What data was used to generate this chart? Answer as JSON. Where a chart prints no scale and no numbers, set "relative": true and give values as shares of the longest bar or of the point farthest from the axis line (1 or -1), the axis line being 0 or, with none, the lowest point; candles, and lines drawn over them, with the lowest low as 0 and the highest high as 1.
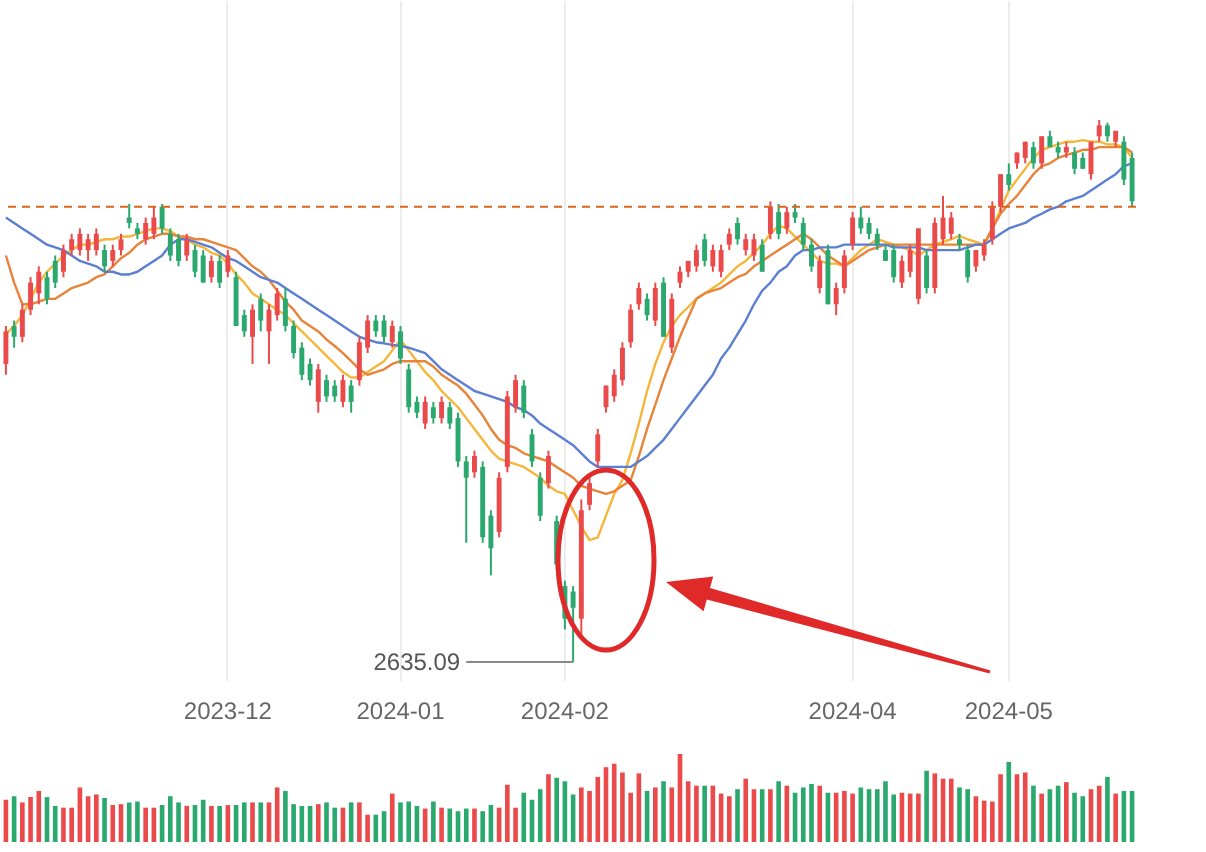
{
  "chart_data": [
    {
      "type": "candlestick",
      "relative": true,
      "grid": "x",
      "categories": [
        null,
        null,
        null,
        null,
        null,
        null,
        null,
        null,
        null,
        null,
        null,
        null,
        null,
        null,
        null,
        null,
        null,
        null,
        null,
        null,
        null,
        null,
        null,
        null,
        null,
        null,
        null,
        "2023-12",
        null,
        null,
        null,
        null,
        null,
        null,
        null,
        null,
        null,
        null,
        null,
        null,
        null,
        null,
        null,
        null,
        null,
        null,
        null,
        null,
        "2024-01",
        null,
        null,
        null,
        null,
        null,
        null,
        null,
        null,
        null,
        null,
        null,
        null,
        null,
        null,
        null,
        null,
        null,
        null,
        null,
        "2024-02",
        null,
        null,
        null,
        null,
        null,
        null,
        null,
        null,
        null,
        null,
        null,
        null,
        null,
        null,
        null,
        null,
        null,
        null,
        null,
        null,
        null,
        null,
        null,
        null,
        null,
        null,
        null,
        null,
        null,
        null,
        null,
        null,
        null,
        null,
        "2024-04",
        null,
        null,
        null,
        null,
        null,
        null,
        null,
        null,
        null,
        null,
        null,
        null,
        null,
        null,
        null,
        null,
        null,
        null,
        "2024-05",
        null,
        null,
        null,
        null,
        null,
        null,
        null,
        null,
        null,
        null,
        null,
        null,
        null,
        null,
        null
      ],
      "ohlc": [
        [
          0.55,
          0.62,
          0.53,
          0.61
        ],
        [
          0.62,
          0.63,
          0.58,
          0.6
        ],
        [
          0.6,
          0.66,
          0.59,
          0.65
        ],
        [
          0.65,
          0.71,
          0.64,
          0.7
        ],
        [
          0.68,
          0.73,
          0.66,
          0.72
        ],
        [
          0.71,
          0.72,
          0.66,
          0.67
        ],
        [
          0.74,
          0.75,
          0.69,
          0.7
        ],
        [
          0.72,
          0.77,
          0.71,
          0.76
        ],
        [
          0.76,
          0.79,
          0.75,
          0.78
        ],
        [
          0.76,
          0.8,
          0.75,
          0.79
        ],
        [
          0.76,
          0.79,
          0.74,
          0.78
        ],
        [
          0.76,
          0.8,
          0.75,
          0.79
        ],
        [
          0.76,
          0.77,
          0.72,
          0.73
        ],
        [
          0.74,
          0.77,
          0.73,
          0.76
        ],
        [
          0.76,
          0.79,
          0.75,
          0.78
        ],
        [
          0.82,
          0.845,
          0.8,
          0.81
        ],
        [
          0.8,
          0.81,
          0.78,
          0.79
        ],
        [
          0.78,
          0.82,
          0.77,
          0.81
        ],
        [
          0.79,
          0.84,
          0.78,
          0.82
        ],
        [
          0.84,
          0.845,
          0.79,
          0.8
        ],
        [
          0.79,
          0.8,
          0.74,
          0.75
        ],
        [
          0.78,
          0.79,
          0.73,
          0.74
        ],
        [
          0.75,
          0.79,
          0.74,
          0.78
        ],
        [
          0.76,
          0.77,
          0.71,
          0.72
        ],
        [
          0.75,
          0.76,
          0.7,
          0.7
        ],
        [
          0.71,
          0.75,
          0.7,
          0.74
        ],
        [
          0.74,
          0.75,
          0.69,
          0.7
        ],
        [
          0.72,
          0.76,
          0.71,
          0.75
        ],
        [
          0.71,
          0.72,
          0.62,
          0.62
        ],
        [
          0.64,
          0.65,
          0.6,
          0.61
        ],
        [
          0.6,
          0.66,
          0.55,
          0.65
        ],
        [
          0.67,
          0.68,
          0.61,
          0.63
        ],
        [
          0.61,
          0.66,
          0.55,
          0.65
        ],
        [
          0.64,
          0.69,
          0.63,
          0.68
        ],
        [
          0.67,
          0.69,
          0.61,
          0.62
        ],
        [
          0.62,
          0.63,
          0.56,
          0.57
        ],
        [
          0.58,
          0.59,
          0.52,
          0.53
        ],
        [
          0.55,
          0.56,
          0.51,
          0.52
        ],
        [
          0.48,
          0.55,
          0.46,
          0.54
        ],
        [
          0.52,
          0.53,
          0.48,
          0.49
        ],
        [
          0.51,
          0.52,
          0.48,
          0.49
        ],
        [
          0.48,
          0.53,
          0.47,
          0.52
        ],
        [
          0.51,
          0.52,
          0.46,
          0.48
        ],
        [
          0.52,
          0.6,
          0.51,
          0.59
        ],
        [
          0.58,
          0.64,
          0.57,
          0.63
        ],
        [
          0.63,
          0.64,
          0.6,
          0.61
        ],
        [
          0.63,
          0.64,
          0.59,
          0.6
        ],
        [
          0.59,
          0.63,
          0.58,
          0.62
        ],
        [
          0.61,
          0.62,
          0.55,
          0.56
        ],
        [
          0.54,
          0.55,
          0.46,
          0.47
        ],
        [
          0.48,
          0.49,
          0.45,
          0.46
        ],
        [
          0.44,
          0.49,
          0.43,
          0.48
        ],
        [
          0.47,
          0.48,
          0.44,
          0.45
        ],
        [
          0.45,
          0.49,
          0.44,
          0.48
        ],
        [
          0.47,
          0.48,
          0.43,
          0.44
        ],
        [
          0.45,
          0.46,
          0.36,
          0.37
        ],
        [
          0.37,
          0.38,
          0.22,
          0.34
        ],
        [
          0.35,
          0.39,
          0.34,
          0.38
        ],
        [
          0.36,
          0.37,
          0.22,
          0.23
        ],
        [
          0.27,
          0.28,
          0.16,
          0.21
        ],
        [
          0.24,
          0.35,
          0.23,
          0.34
        ],
        [
          0.36,
          0.5,
          0.35,
          0.49
        ],
        [
          0.47,
          0.53,
          0.46,
          0.52
        ],
        [
          0.51,
          0.52,
          0.45,
          0.46
        ],
        [
          0.42,
          0.43,
          0.36,
          0.37
        ],
        [
          0.34,
          0.35,
          0.26,
          0.27
        ],
        [
          0.33,
          0.39,
          0.32,
          0.38
        ],
        [
          0.26,
          0.27,
          0.17,
          0.18
        ],
        [
          0.14,
          0.15,
          0.06,
          0.08
        ],
        [
          0.13,
          0.14,
          0,
          0.1
        ],
        [
          0.08,
          0.3,
          0.05,
          0.28
        ],
        [
          0.29,
          0.34,
          0.28,
          0.33
        ],
        [
          0.37,
          0.43,
          0.36,
          0.42
        ],
        [
          0.47,
          0.51,
          0.46,
          0.51
        ],
        [
          0.49,
          0.54,
          0.48,
          0.53
        ],
        [
          0.52,
          0.59,
          0.51,
          0.58
        ],
        [
          0.59,
          0.66,
          0.58,
          0.65
        ],
        [
          0.66,
          0.7,
          0.65,
          0.69
        ],
        [
          0.67,
          0.68,
          0.63,
          0.64
        ],
        [
          0.63,
          0.7,
          0.62,
          0.69
        ],
        [
          0.7,
          0.71,
          0.6,
          0.6
        ],
        [
          0.58,
          0.68,
          0.57,
          0.67
        ],
        [
          0.7,
          0.73,
          0.69,
          0.72
        ],
        [
          0.72,
          0.74,
          0.71,
          0.74
        ],
        [
          0.73,
          0.77,
          0.72,
          0.76
        ],
        [
          0.78,
          0.79,
          0.73,
          0.74
        ],
        [
          0.73,
          0.77,
          0.72,
          0.76
        ],
        [
          0.72,
          0.77,
          0.71,
          0.76
        ],
        [
          0.77,
          0.8,
          0.76,
          0.79
        ],
        [
          0.81,
          0.82,
          0.77,
          0.78
        ],
        [
          0.76,
          0.79,
          0.75,
          0.78
        ],
        [
          0.75,
          0.79,
          0.74,
          0.78
        ],
        [
          0.77,
          0.78,
          0.72,
          0.72
        ],
        [
          0.79,
          0.85,
          0.78,
          0.84
        ],
        [
          0.83,
          0.845,
          0.78,
          0.79
        ],
        [
          0.8,
          0.84,
          0.79,
          0.83
        ],
        [
          0.83,
          0.845,
          0.81,
          0.82
        ],
        [
          0.81,
          0.82,
          0.76,
          0.77
        ],
        [
          0.77,
          0.78,
          0.72,
          0.73
        ],
        [
          0.69,
          0.75,
          0.68,
          0.74
        ],
        [
          0.76,
          0.77,
          0.66,
          0.66
        ],
        [
          0.66,
          0.7,
          0.64,
          0.69
        ],
        [
          0.69,
          0.76,
          0.68,
          0.75
        ],
        [
          0.77,
          0.83,
          0.76,
          0.82
        ],
        [
          0.82,
          0.84,
          0.79,
          0.8
        ],
        [
          0.81,
          0.82,
          0.78,
          0.79
        ],
        [
          0.79,
          0.8,
          0.76,
          0.77
        ],
        [
          0.76,
          0.77,
          0.74,
          0.74
        ],
        [
          0.76,
          0.77,
          0.7,
          0.71
        ],
        [
          0.7,
          0.75,
          0.69,
          0.74
        ],
        [
          0.72,
          0.77,
          0.71,
          0.76
        ],
        [
          0.67,
          0.8,
          0.66,
          0.8
        ],
        [
          0.75,
          0.76,
          0.68,
          0.69
        ],
        [
          0.69,
          0.82,
          0.68,
          0.81
        ],
        [
          0.78,
          0.86,
          0.77,
          0.82
        ],
        [
          0.79,
          0.83,
          0.78,
          0.82
        ],
        [
          0.78,
          0.79,
          0.76,
          0.77
        ],
        [
          0.76,
          0.77,
          0.7,
          0.71
        ],
        [
          0.73,
          0.76,
          0.72,
          0.76
        ],
        [
          0.75,
          0.78,
          0.74,
          0.77
        ],
        [
          0.78,
          0.85,
          0.77,
          0.84
        ],
        [
          0.84,
          0.9,
          0.83,
          0.9
        ],
        [
          0.9,
          0.92,
          0.87,
          0.88
        ],
        [
          0.92,
          0.94,
          0.91,
          0.94
        ],
        [
          0.93,
          0.96,
          0.92,
          0.96
        ],
        [
          0.95,
          0.96,
          0.91,
          0.92
        ],
        [
          0.92,
          0.97,
          0.91,
          0.97
        ],
        [
          0.97,
          0.98,
          0.95,
          0.95
        ],
        [
          0.95,
          0.96,
          0.93,
          0.94
        ],
        [
          0.94,
          0.96,
          0.93,
          0.95
        ],
        [
          0.94,
          0.95,
          0.9,
          0.91
        ],
        [
          0.93,
          0.94,
          0.91,
          0.91
        ],
        [
          0.9,
          0.96,
          0.89,
          0.96
        ],
        [
          0.97,
          1,
          0.96,
          0.99
        ],
        [
          0.99,
          0.995,
          0.96,
          0.97
        ],
        [
          0.96,
          0.98,
          0.95,
          0.98
        ],
        [
          0.96,
          0.97,
          0.88,
          0.89
        ],
        [
          0.93,
          0.94,
          0.84,
          0.85
        ]
      ],
      "colors": [
        "#eb4a4a",
        "#2aa86e",
        "#eb4a4a",
        "#eb4a4a",
        "#eb4a4a",
        "#2aa86e",
        "#2aa86e",
        "#eb4a4a",
        "#eb4a4a",
        "#eb4a4a",
        "#eb4a4a",
        "#eb4a4a",
        "#2aa86e",
        "#eb4a4a",
        "#eb4a4a",
        "#2aa86e",
        "#2aa86e",
        "#eb4a4a",
        "#eb4a4a",
        "#2aa86e",
        "#2aa86e",
        "#2aa86e",
        "#eb4a4a",
        "#2aa86e",
        "#2aa86e",
        "#eb4a4a",
        "#2aa86e",
        "#eb4a4a",
        "#2aa86e",
        "#2aa86e",
        "#eb4a4a",
        "#2aa86e",
        "#eb4a4a",
        "#eb4a4a",
        "#2aa86e",
        "#2aa86e",
        "#2aa86e",
        "#2aa86e",
        "#eb4a4a",
        "#2aa86e",
        "#2aa86e",
        "#eb4a4a",
        "#2aa86e",
        "#eb4a4a",
        "#eb4a4a",
        "#2aa86e",
        "#2aa86e",
        "#eb4a4a",
        "#2aa86e",
        "#2aa86e",
        "#2aa86e",
        "#eb4a4a",
        "#2aa86e",
        "#eb4a4a",
        "#2aa86e",
        "#2aa86e",
        "#2aa86e",
        "#eb4a4a",
        "#2aa86e",
        "#2aa86e",
        "#eb4a4a",
        "#eb4a4a",
        "#eb4a4a",
        "#2aa86e",
        "#2aa86e",
        "#2aa86e",
        "#eb4a4a",
        "#2aa86e",
        "#2aa86e",
        "#2aa86e",
        "#eb4a4a",
        "#eb4a4a",
        "#eb4a4a",
        "#eb4a4a",
        "#eb4a4a",
        "#eb4a4a",
        "#eb4a4a",
        "#eb4a4a",
        "#2aa86e",
        "#eb4a4a",
        "#2aa86e",
        "#eb4a4a",
        "#eb4a4a",
        "#eb4a4a",
        "#eb4a4a",
        "#2aa86e",
        "#eb4a4a",
        "#eb4a4a",
        "#eb4a4a",
        "#2aa86e",
        "#eb4a4a",
        "#eb4a4a",
        "#2aa86e",
        "#eb4a4a",
        "#2aa86e",
        "#eb4a4a",
        "#2aa86e",
        "#2aa86e",
        "#2aa86e",
        "#eb4a4a",
        "#2aa86e",
        "#eb4a4a",
        "#eb4a4a",
        "#eb4a4a",
        "#2aa86e",
        "#2aa86e",
        "#2aa86e",
        "#2aa86e",
        "#2aa86e",
        "#eb4a4a",
        "#eb4a4a",
        "#eb4a4a",
        "#2aa86e",
        "#eb4a4a",
        "#eb4a4a",
        "#eb4a4a",
        "#2aa86e",
        "#2aa86e",
        "#eb4a4a",
        "#eb4a4a",
        "#eb4a4a",
        "#eb4a4a",
        "#2aa86e",
        "#eb4a4a",
        "#eb4a4a",
        "#2aa86e",
        "#eb4a4a",
        "#2aa86e",
        "#2aa86e",
        "#eb4a4a",
        "#2aa86e",
        "#2aa86e",
        "#eb4a4a",
        "#eb4a4a",
        "#2aa86e",
        "#eb4a4a",
        "#2aa86e",
        "#2aa86e"
      ],
      "series": [
        {
          "type": "line",
          "color": "#f5b73b",
          "values": [
            0.605,
            0.62,
            0.64,
            0.67,
            0.7,
            0.72,
            0.735,
            0.75,
            0.76,
            0.77,
            0.77,
            0.775,
            0.78,
            0.78,
            0.785,
            0.785,
            0.79,
            0.795,
            0.8,
            0.8,
            0.795,
            0.785,
            0.78,
            0.77,
            0.765,
            0.755,
            0.75,
            0.735,
            0.715,
            0.7,
            0.68,
            0.67,
            0.66,
            0.65,
            0.64,
            0.625,
            0.61,
            0.595,
            0.58,
            0.565,
            0.55,
            0.535,
            0.525,
            0.525,
            0.535,
            0.545,
            0.555,
            0.575,
            0.594,
            0.575,
            0.555,
            0.535,
            0.52,
            0.5,
            0.485,
            0.47,
            0.45,
            0.43,
            0.41,
            0.39,
            0.375,
            0.37,
            0.365,
            0.36,
            0.35,
            0.34,
            0.325,
            0.315,
            0.31,
            0.28,
            0.25,
            0.225,
            0.23,
            0.27,
            0.31,
            0.336,
            0.385,
            0.44,
            0.5,
            0.55,
            0.59,
            0.62,
            0.64,
            0.655,
            0.67,
            0.68,
            0.69,
            0.7,
            0.715,
            0.73,
            0.74,
            0.755,
            0.77,
            0.79,
            0.805,
            0.8,
            0.785,
            0.77,
            0.755,
            0.74,
            0.735,
            0.735,
            0.73,
            0.745,
            0.76,
            0.77,
            0.78,
            0.775,
            0.77,
            0.765,
            0.76,
            0.75,
            0.76,
            0.77,
            0.775,
            0.78,
            0.786,
            0.78,
            0.775,
            0.77,
            0.8,
            0.835,
            0.87,
            0.89,
            0.91,
            0.93,
            0.945,
            0.95,
            0.955,
            0.96,
            0.96,
            0.963,
            0.96,
            0.96,
            0.955,
            0.955,
            0.95,
            0.93
          ]
        },
        {
          "type": "line",
          "color": "#e8833a",
          "values": [
            0.75,
            0.7,
            0.66,
            0.66,
            0.665,
            0.67,
            0.67,
            0.68,
            0.69,
            0.695,
            0.7,
            0.71,
            0.715,
            0.73,
            0.745,
            0.755,
            0.77,
            0.78,
            0.785,
            0.79,
            0.79,
            0.785,
            0.785,
            0.78,
            0.78,
            0.775,
            0.77,
            0.765,
            0.76,
            0.745,
            0.73,
            0.72,
            0.705,
            0.685,
            0.665,
            0.65,
            0.63,
            0.62,
            0.61,
            0.595,
            0.583,
            0.57,
            0.555,
            0.54,
            0.53,
            0.535,
            0.54,
            0.55,
            0.555,
            0.555,
            0.555,
            0.555,
            0.545,
            0.53,
            0.52,
            0.51,
            0.495,
            0.475,
            0.455,
            0.43,
            0.41,
            0.4,
            0.395,
            0.385,
            0.38,
            0.375,
            0.37,
            0.36,
            0.35,
            0.34,
            0.325,
            0.32,
            0.315,
            0.31,
            0.315,
            0.325,
            0.335,
            0.38,
            0.43,
            0.475,
            0.52,
            0.56,
            0.6,
            0.635,
            0.67,
            0.68,
            0.685,
            0.69,
            0.7,
            0.71,
            0.716,
            0.73,
            0.74,
            0.75,
            0.76,
            0.77,
            0.78,
            0.79,
            0.78,
            0.765,
            0.75,
            0.74,
            0.73,
            0.74,
            0.75,
            0.76,
            0.765,
            0.77,
            0.77,
            0.77,
            0.77,
            0.77,
            0.77,
            0.77,
            0.77,
            0.77,
            0.77,
            0.77,
            0.77,
            0.77,
            0.8,
            0.827,
            0.845,
            0.86,
            0.88,
            0.9,
            0.915,
            0.92,
            0.93,
            0.935,
            0.94,
            0.945,
            0.945,
            0.95,
            0.95,
            0.95,
            0.95,
            0.94
          ]
        },
        {
          "type": "line",
          "color": "#5b7fd1",
          "values": [
            0.82,
            0.81,
            0.8,
            0.79,
            0.78,
            0.77,
            0.765,
            0.76,
            0.75,
            0.74,
            0.735,
            0.73,
            0.72,
            0.72,
            0.715,
            0.715,
            0.72,
            0.73,
            0.74,
            0.75,
            0.77,
            0.78,
            0.78,
            0.775,
            0.77,
            0.765,
            0.755,
            0.745,
            0.74,
            0.73,
            0.72,
            0.71,
            0.705,
            0.7,
            0.69,
            0.68,
            0.67,
            0.66,
            0.65,
            0.64,
            0.63,
            0.62,
            0.61,
            0.6,
            0.595,
            0.59,
            0.588,
            0.585,
            0.583,
            0.58,
            0.575,
            0.57,
            0.555,
            0.54,
            0.53,
            0.52,
            0.51,
            0.5,
            0.495,
            0.49,
            0.485,
            0.48,
            0.47,
            0.465,
            0.455,
            0.44,
            0.43,
            0.42,
            0.41,
            0.4,
            0.385,
            0.37,
            0.36,
            0.36,
            0.36,
            0.36,
            0.36,
            0.37,
            0.38,
            0.395,
            0.41,
            0.43,
            0.45,
            0.47,
            0.49,
            0.51,
            0.53,
            0.56,
            0.58,
            0.605,
            0.63,
            0.66,
            0.685,
            0.7,
            0.72,
            0.73,
            0.75,
            0.76,
            0.76,
            0.765,
            0.765,
            0.765,
            0.77,
            0.77,
            0.77,
            0.77,
            0.77,
            0.77,
            0.765,
            0.765,
            0.765,
            0.765,
            0.76,
            0.76,
            0.76,
            0.76,
            0.76,
            0.765,
            0.77,
            0.77,
            0.78,
            0.79,
            0.8,
            0.805,
            0.81,
            0.82,
            0.827,
            0.835,
            0.84,
            0.85,
            0.855,
            0.86,
            0.87,
            0.88,
            0.89,
            0.9,
            0.915,
            0.92
          ]
        }
      ],
      "ref_lines": [
        {
          "axis": "y",
          "value": 0.84,
          "color": "#d9661c",
          "line_style": "dashed"
        }
      ],
      "annotations": [
        "2635.09"
      ]
    },
    {
      "type": "bar",
      "relative": true,
      "categories": [
        null,
        null,
        null,
        null,
        null,
        null,
        null,
        null,
        null,
        null,
        null,
        null,
        null,
        null,
        null,
        null,
        null,
        null,
        null,
        null,
        null,
        null,
        null,
        null,
        null,
        null,
        null,
        null,
        null,
        null,
        null,
        null,
        null,
        null,
        null,
        null,
        null,
        null,
        null,
        null,
        null,
        null,
        null,
        null,
        null,
        null,
        null,
        null,
        null,
        null,
        null,
        null,
        null,
        null,
        null,
        null,
        null,
        null,
        null,
        null,
        null,
        null,
        null,
        null,
        null,
        null,
        null,
        null,
        null,
        null,
        null,
        null,
        null,
        null,
        null,
        null,
        null,
        null,
        null,
        null,
        null,
        null,
        null,
        null,
        null,
        null,
        null,
        null,
        null,
        null,
        null,
        null,
        null,
        null,
        null,
        null,
        null,
        null,
        null,
        null,
        null,
        null,
        null,
        null,
        null,
        null,
        null,
        null,
        null,
        null,
        null,
        null,
        null,
        null,
        null,
        null,
        null,
        null,
        null,
        null,
        null,
        null,
        null,
        null,
        null,
        null,
        null,
        null,
        null,
        null,
        null,
        null,
        null,
        null,
        null,
        null,
        null,
        null
      ],
      "values": [
        0.48,
        0.52,
        0.45,
        0.51,
        0.58,
        0.51,
        0.41,
        0.39,
        0.39,
        0.62,
        0.52,
        0.54,
        0.5,
        0.42,
        0.43,
        0.45,
        0.46,
        0.39,
        0.39,
        0.42,
        0.52,
        0.45,
        0.41,
        0.42,
        0.48,
        0.41,
        0.41,
        0.42,
        0.42,
        0.45,
        0.45,
        0.45,
        0.45,
        0.62,
        0.58,
        0.43,
        0.41,
        0.41,
        0.43,
        0.45,
        0.39,
        0.39,
        0.45,
        0.45,
        0.31,
        0.31,
        0.35,
        0.55,
        0.45,
        0.46,
        0.41,
        0.38,
        0.46,
        0.39,
        0.38,
        0.35,
        0.38,
        0.38,
        0.35,
        0.42,
        0.39,
        0.65,
        0.39,
        0.56,
        0.48,
        0.6,
        0.77,
        0.73,
        0.69,
        0.54,
        0.62,
        0.58,
        0.74,
        0.85,
        0.89,
        0.79,
        0.56,
        0.78,
        0.58,
        0.62,
        0.69,
        0.62,
        1,
        0.69,
        0.64,
        0.64,
        0.64,
        0.55,
        0.52,
        0.6,
        0.72,
        0.6,
        0.6,
        0.6,
        0.69,
        0.64,
        0.56,
        0.62,
        0.66,
        0.64,
        0.56,
        0.56,
        0.58,
        0.55,
        0.62,
        0.6,
        0.6,
        0.69,
        0.54,
        0.56,
        0.55,
        0.55,
        0.81,
        0.78,
        0.72,
        0.72,
        0.62,
        0.6,
        0.52,
        0.47,
        0.46,
        0.77,
        0.91,
        0.77,
        0.79,
        0.64,
        0.55,
        0.6,
        0.64,
        0.68,
        0.56,
        0.52,
        0.6,
        0.64,
        0.74,
        0.55,
        0.58,
        0.58
      ],
      "colors": [
        "#eb4a4a",
        "#2aa86e",
        "#eb4a4a",
        "#eb4a4a",
        "#eb4a4a",
        "#2aa86e",
        "#2aa86e",
        "#eb4a4a",
        "#eb4a4a",
        "#eb4a4a",
        "#eb4a4a",
        "#eb4a4a",
        "#2aa86e",
        "#eb4a4a",
        "#eb4a4a",
        "#2aa86e",
        "#2aa86e",
        "#eb4a4a",
        "#eb4a4a",
        "#2aa86e",
        "#2aa86e",
        "#2aa86e",
        "#eb4a4a",
        "#2aa86e",
        "#2aa86e",
        "#eb4a4a",
        "#2aa86e",
        "#eb4a4a",
        "#2aa86e",
        "#2aa86e",
        "#eb4a4a",
        "#2aa86e",
        "#eb4a4a",
        "#eb4a4a",
        "#2aa86e",
        "#2aa86e",
        "#2aa86e",
        "#2aa86e",
        "#eb4a4a",
        "#2aa86e",
        "#2aa86e",
        "#eb4a4a",
        "#2aa86e",
        "#eb4a4a",
        "#eb4a4a",
        "#2aa86e",
        "#2aa86e",
        "#eb4a4a",
        "#2aa86e",
        "#2aa86e",
        "#2aa86e",
        "#eb4a4a",
        "#2aa86e",
        "#eb4a4a",
        "#2aa86e",
        "#2aa86e",
        "#2aa86e",
        "#eb4a4a",
        "#2aa86e",
        "#2aa86e",
        "#eb4a4a",
        "#eb4a4a",
        "#eb4a4a",
        "#2aa86e",
        "#2aa86e",
        "#2aa86e",
        "#eb4a4a",
        "#2aa86e",
        "#2aa86e",
        "#2aa86e",
        "#eb4a4a",
        "#eb4a4a",
        "#eb4a4a",
        "#eb4a4a",
        "#eb4a4a",
        "#eb4a4a",
        "#eb4a4a",
        "#eb4a4a",
        "#2aa86e",
        "#eb4a4a",
        "#2aa86e",
        "#eb4a4a",
        "#eb4a4a",
        "#eb4a4a",
        "#eb4a4a",
        "#2aa86e",
        "#eb4a4a",
        "#eb4a4a",
        "#eb4a4a",
        "#2aa86e",
        "#eb4a4a",
        "#eb4a4a",
        "#2aa86e",
        "#eb4a4a",
        "#2aa86e",
        "#eb4a4a",
        "#2aa86e",
        "#2aa86e",
        "#2aa86e",
        "#eb4a4a",
        "#2aa86e",
        "#eb4a4a",
        "#eb4a4a",
        "#eb4a4a",
        "#2aa86e",
        "#2aa86e",
        "#2aa86e",
        "#2aa86e",
        "#2aa86e",
        "#eb4a4a",
        "#eb4a4a",
        "#eb4a4a",
        "#2aa86e",
        "#eb4a4a",
        "#eb4a4a",
        "#eb4a4a",
        "#2aa86e",
        "#2aa86e",
        "#eb4a4a",
        "#eb4a4a",
        "#eb4a4a",
        "#eb4a4a",
        "#2aa86e",
        "#eb4a4a",
        "#eb4a4a",
        "#2aa86e",
        "#eb4a4a",
        "#2aa86e",
        "#2aa86e",
        "#eb4a4a",
        "#2aa86e",
        "#2aa86e",
        "#eb4a4a",
        "#eb4a4a",
        "#2aa86e",
        "#eb4a4a",
        "#2aa86e",
        "#2aa86e"
      ]
    }
  ]
}
